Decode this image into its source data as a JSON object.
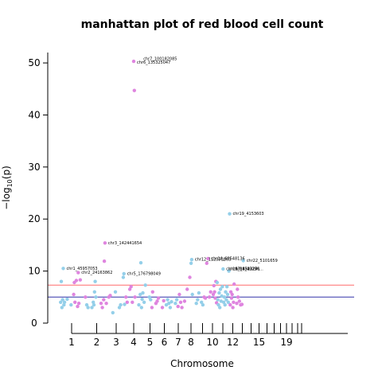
{
  "chart_data": {
    "type": "scatter",
    "title": "manhattan plot of red blood cell count",
    "xlabel": "Chromosome",
    "ylabel_main": "−log",
    "ylabel_sub": "10",
    "ylabel_tail": "(p)",
    "ylim": [
      0,
      52
    ],
    "yticks": [
      0,
      10,
      20,
      30,
      40,
      50
    ],
    "x_range": [
      0,
      23
    ],
    "chromosome_ticks": [
      1,
      2,
      3,
      4,
      5,
      6,
      7,
      8,
      9,
      10,
      11,
      12,
      13,
      14,
      15,
      16,
      17,
      18,
      19,
      20,
      21,
      22
    ],
    "chromosome_tick_labels": [
      "1",
      "2",
      "3",
      "4",
      "5",
      "6",
      "7",
      "8",
      "10",
      "12",
      "15",
      "19"
    ],
    "labeled_chromosomes": [
      1,
      2,
      3,
      4,
      5,
      6,
      7,
      8,
      10,
      12,
      15,
      19
    ],
    "threshold_lines": [
      {
        "name": "genome-wide",
        "value": 7.3,
        "color": "#ff6b6b"
      },
      {
        "name": "suggestive",
        "value": 5.0,
        "color": "#3333aa"
      }
    ],
    "colors": {
      "odd_chromosome": "#94cfe9",
      "even_chromosome": "#df85df"
    },
    "points": [
      [
        0.5,
        4.0
      ],
      [
        0.55,
        8.0
      ],
      [
        0.6,
        3.0
      ],
      [
        0.65,
        4.5
      ],
      [
        0.7,
        10.5
      ],
      [
        0.75,
        3.5
      ],
      [
        0.8,
        4.0
      ],
      [
        1.0,
        4.6
      ],
      [
        1.3,
        3.5
      ],
      [
        1.5,
        5.5
      ],
      [
        1.55,
        7.8
      ],
      [
        1.6,
        4.0
      ],
      [
        1.7,
        8.2
      ],
      [
        1.8,
        3.2
      ],
      [
        1.85,
        9.7
      ],
      [
        1.9,
        3.8
      ],
      [
        2.0,
        8.3
      ],
      [
        2.4,
        5.0
      ],
      [
        2.5,
        3.5
      ],
      [
        2.6,
        3.0
      ],
      [
        2.9,
        3.0
      ],
      [
        3.0,
        4.0
      ],
      [
        3.05,
        3.5
      ],
      [
        3.1,
        6.0
      ],
      [
        3.15,
        8.0
      ],
      [
        3.2,
        5.0
      ],
      [
        3.6,
        3.8
      ],
      [
        3.7,
        3.0
      ],
      [
        3.8,
        4.5
      ],
      [
        3.85,
        11.9
      ],
      [
        3.9,
        15.4
      ],
      [
        4.0,
        3.8
      ],
      [
        4.2,
        5.0
      ],
      [
        4.3,
        5.3
      ],
      [
        4.5,
        2.0
      ],
      [
        4.7,
        6.0
      ],
      [
        5.0,
        3.0
      ],
      [
        5.1,
        3.5
      ],
      [
        5.3,
        8.8
      ],
      [
        5.35,
        9.5
      ],
      [
        5.4,
        3.6
      ],
      [
        5.5,
        5.0
      ],
      [
        5.6,
        4.0
      ],
      [
        5.8,
        6.5
      ],
      [
        5.9,
        7.0
      ],
      [
        6.0,
        4.0
      ],
      [
        6.1,
        50.3
      ],
      [
        6.15,
        44.7
      ],
      [
        6.2,
        5.0
      ],
      [
        6.5,
        3.5
      ],
      [
        6.6,
        5.5
      ],
      [
        6.65,
        11.6
      ],
      [
        6.7,
        3.0
      ],
      [
        6.75,
        4.6
      ],
      [
        6.8,
        5.8
      ],
      [
        6.9,
        4.0
      ],
      [
        7.0,
        7.3
      ],
      [
        7.3,
        5.0
      ],
      [
        7.4,
        4.5
      ],
      [
        7.5,
        3.0
      ],
      [
        7.55,
        6.0
      ],
      [
        7.8,
        3.8
      ],
      [
        7.9,
        4.2
      ],
      [
        8.0,
        4.8
      ],
      [
        8.3,
        3.0
      ],
      [
        8.4,
        4.3
      ],
      [
        8.6,
        3.5
      ],
      [
        8.7,
        4.5
      ],
      [
        8.8,
        3.8
      ],
      [
        8.9,
        3.0
      ],
      [
        9.0,
        4.1
      ],
      [
        9.3,
        3.8
      ],
      [
        9.4,
        4.5
      ],
      [
        9.5,
        3.2
      ],
      [
        9.6,
        5.5
      ],
      [
        9.7,
        4.0
      ],
      [
        9.8,
        3.0
      ],
      [
        10.0,
        4.2
      ],
      [
        10.2,
        6.5
      ],
      [
        10.4,
        8.8
      ],
      [
        10.5,
        11.5
      ],
      [
        10.55,
        12.2
      ],
      [
        10.6,
        5.5
      ],
      [
        10.9,
        3.8
      ],
      [
        11.0,
        4.5
      ],
      [
        11.1,
        5.8
      ],
      [
        11.3,
        4.0
      ],
      [
        11.4,
        3.5
      ],
      [
        11.5,
        5.0
      ],
      [
        11.6,
        4.8
      ],
      [
        11.7,
        11.5
      ],
      [
        11.8,
        12.4
      ],
      [
        11.9,
        5.0
      ],
      [
        12.0,
        6.0
      ],
      [
        12.2,
        5.5
      ],
      [
        12.25,
        7.2
      ],
      [
        12.3,
        6.0
      ],
      [
        12.35,
        4.8
      ],
      [
        12.4,
        8.0
      ],
      [
        12.45,
        3.9
      ],
      [
        12.5,
        7.8
      ],
      [
        12.55,
        4.5
      ],
      [
        12.6,
        3.5
      ],
      [
        12.65,
        5.8
      ],
      [
        12.7,
        3.0
      ],
      [
        12.75,
        6.5
      ],
      [
        12.8,
        4.2
      ],
      [
        12.85,
        5.2
      ],
      [
        12.9,
        7.0
      ],
      [
        12.95,
        10.4
      ],
      [
        13.0,
        4.0
      ],
      [
        13.05,
        5.0
      ],
      [
        13.1,
        3.5
      ],
      [
        13.15,
        6.0
      ],
      [
        13.2,
        4.5
      ],
      [
        13.25,
        7.0
      ],
      [
        13.3,
        5.5
      ],
      [
        13.35,
        4.0
      ],
      [
        13.4,
        10.0
      ],
      [
        13.45,
        21.0
      ],
      [
        13.5,
        3.5
      ],
      [
        13.55,
        6.0
      ],
      [
        13.6,
        4.8
      ],
      [
        13.65,
        5.5
      ],
      [
        13.7,
        3.0
      ],
      [
        13.75,
        4.0
      ],
      [
        13.8,
        7.5
      ],
      [
        14.0,
        3.8
      ],
      [
        14.05,
        6.5
      ],
      [
        14.1,
        5.0
      ],
      [
        14.2,
        4.2
      ],
      [
        14.3,
        3.5
      ],
      [
        14.4,
        3.6
      ],
      [
        14.5,
        12.0
      ]
    ],
    "annotations": [
      {
        "label": "chr1_45957053",
        "x": 0.7,
        "y": 10.5
      },
      {
        "label": "chr2_24163862",
        "x": 1.85,
        "y": 9.7
      },
      {
        "label": "chr3_142441654",
        "x": 3.9,
        "y": 15.4
      },
      {
        "label": "chr5_176798049",
        "x": 5.35,
        "y": 9.5
      },
      {
        "label": "chr6_135325047",
        "x": 6.1,
        "y": 50.1
      },
      {
        "label": "chr7_100182085",
        "x": 6.6,
        "y": 50.8
      },
      {
        "label": "chr12_112353863",
        "x": 10.55,
        "y": 12.2
      },
      {
        "label": "chr14_68548136",
        "x": 11.8,
        "y": 12.4
      },
      {
        "label": "chr16_88703271",
        "x": 12.95,
        "y": 10.4
      },
      {
        "label": "chr17_4522101",
        "x": 13.15,
        "y": 10.4
      },
      {
        "label": "chr18_43256...",
        "x": 13.5,
        "y": 10.4
      },
      {
        "label": "chr19_4153603",
        "x": 13.45,
        "y": 21.0
      },
      {
        "label": "chr22_5101659",
        "x": 14.5,
        "y": 12.0
      }
    ]
  }
}
